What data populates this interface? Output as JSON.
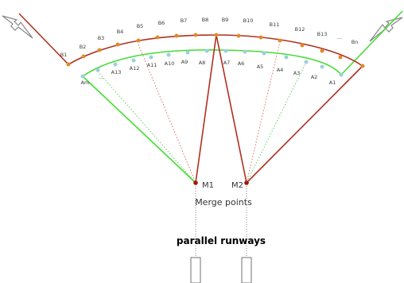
{
  "colors": {
    "outer_arc": "#b03020",
    "inner_arc": "#44dd33",
    "outer_dot": "#e08a2a",
    "inner_dot": "#9ad0dd",
    "merge_dot": "#a01810",
    "dotted_red": "#e06060",
    "dotted_green": "#55cc55",
    "arrow": "#888888"
  },
  "outer_labels": [
    "B1",
    "B2",
    "B3",
    "B4",
    "B5",
    "B6",
    "B7",
    "B8",
    "B9",
    "B10",
    "B11",
    "B12",
    "B13",
    "...",
    "Bn"
  ],
  "inner_labels": [
    "Am",
    "...",
    "A13",
    "A12",
    "A11",
    "A10",
    "A9",
    "A8",
    "A7",
    "A6",
    "A5",
    "A4",
    "A3",
    "A2",
    "A1"
  ],
  "merge_point_1": "M1",
  "merge_point_2": "M2",
  "merge_caption": "Merge points",
  "runways_caption": "parallel runways",
  "icons": [
    "entry-arrow-icon",
    "entry-arrow-icon"
  ]
}
